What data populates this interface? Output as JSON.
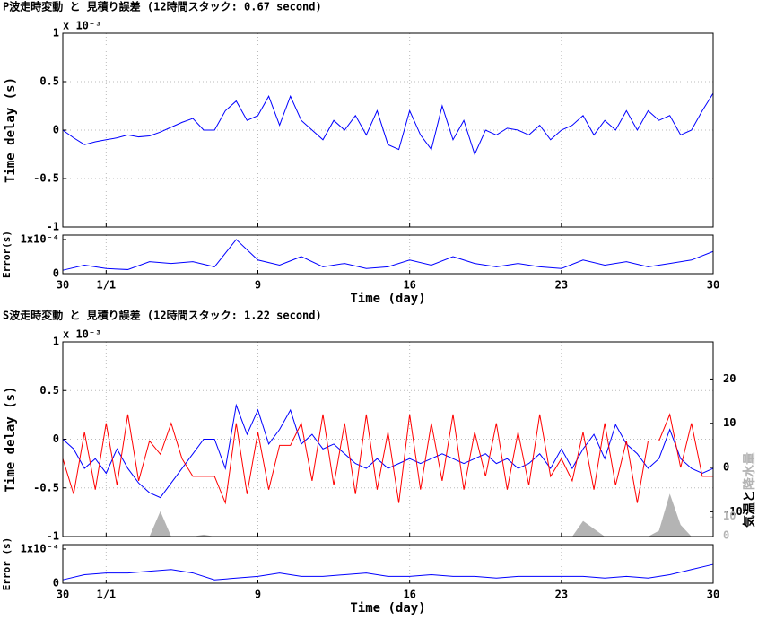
{
  "chart_data": [
    {
      "type": "line",
      "title": "P波走時変動 と 見積り誤差 (12時間スタック: 0.67 second)",
      "ylabel": "Time delay (s)",
      "y_exponent": "x 10⁻³",
      "x": [
        0,
        0.5,
        1,
        1.5,
        2,
        2.5,
        3,
        3.5,
        4,
        4.5,
        5,
        5.5,
        6,
        6.5,
        7,
        7.5,
        8,
        8.5,
        9,
        9.5,
        10,
        10.5,
        11,
        11.5,
        12,
        12.5,
        13,
        13.5,
        14,
        14.5,
        15,
        15.5,
        16,
        16.5,
        17,
        17.5,
        18,
        18.5,
        19,
        19.5,
        20,
        20.5,
        21,
        21.5,
        22,
        22.5,
        23,
        23.5,
        24,
        24.5,
        25,
        25.5,
        26,
        26.5,
        27,
        27.5,
        28,
        28.5,
        29,
        29.5,
        30
      ],
      "series": [
        {
          "color": "#0000ff",
          "values": [
            0,
            -0.08,
            -0.15,
            -0.12,
            -0.1,
            -0.08,
            -0.05,
            -0.07,
            -0.06,
            -0.02,
            0.03,
            0.08,
            0.12,
            0,
            0,
            0.2,
            0.3,
            0.1,
            0.15,
            0.35,
            0.05,
            0.35,
            0.1,
            0.0,
            -0.1,
            0.1,
            0.0,
            0.15,
            -0.05,
            0.2,
            -0.15,
            -0.2,
            0.2,
            -0.05,
            -0.2,
            0.25,
            -0.1,
            0.1,
            -0.25,
            0.0,
            -0.05,
            0.02,
            0.0,
            -0.05,
            0.05,
            -0.1,
            0.0,
            0.05,
            0.15,
            -0.05,
            0.1,
            0.0,
            0.2,
            0.0,
            0.2,
            0.1,
            0.15,
            -0.05,
            0.0,
            0.2,
            0.38
          ]
        }
      ],
      "xlim": [
        0,
        30
      ],
      "ylim": [
        -1,
        1
      ],
      "yticks": [
        1,
        0.5,
        0,
        -0.5,
        -1
      ],
      "grid": true
    },
    {
      "type": "line",
      "ylabel": "Error(s)",
      "xlabel": "Time (day)",
      "x": [
        0,
        1,
        2,
        3,
        4,
        5,
        6,
        7,
        8,
        9,
        10,
        11,
        12,
        13,
        14,
        15,
        16,
        17,
        18,
        19,
        20,
        21,
        22,
        23,
        24,
        25,
        26,
        27,
        28,
        29,
        30
      ],
      "series": [
        {
          "color": "#0000ff",
          "values": [
            1e-05,
            2.5e-05,
            1.5e-05,
            1.2e-05,
            3.5e-05,
            3e-05,
            3.5e-05,
            2e-05,
            0.0001,
            4e-05,
            2.5e-05,
            5e-05,
            2e-05,
            3e-05,
            1.5e-05,
            2e-05,
            4e-05,
            2.5e-05,
            5e-05,
            3e-05,
            2e-05,
            3e-05,
            2e-05,
            1.5e-05,
            4e-05,
            2.5e-05,
            3.5e-05,
            2e-05,
            3e-05,
            4e-05,
            6.5e-05
          ]
        }
      ],
      "xlim": [
        0,
        30
      ],
      "ylim": [
        0,
        0.000113
      ],
      "yticks": [
        0,
        {
          "value": 0.0001,
          "label": "1x10⁻⁴"
        }
      ],
      "xticks": [
        {
          "value": 0,
          "label": "30"
        },
        {
          "value": 2,
          "label": "1/1"
        },
        9,
        16,
        23,
        30
      ],
      "grid": true
    },
    {
      "type": "line",
      "title": "S波走時変動 と 見積り誤差 (12時間スタック: 1.22 second)",
      "ylabel": "Time delay (s)",
      "y_exponent": "x 10⁻³",
      "y2label": "気温と",
      "y3label": "降水量",
      "x": [
        0,
        0.5,
        1,
        1.5,
        2,
        2.5,
        3,
        3.5,
        4,
        4.5,
        5,
        5.5,
        6,
        6.5,
        7,
        7.5,
        8,
        8.5,
        9,
        9.5,
        10,
        10.5,
        11,
        11.5,
        12,
        12.5,
        13,
        13.5,
        14,
        14.5,
        15,
        15.5,
        16,
        16.5,
        17,
        17.5,
        18,
        18.5,
        19,
        19.5,
        20,
        20.5,
        21,
        21.5,
        22,
        22.5,
        23,
        23.5,
        24,
        24.5,
        25,
        25.5,
        26,
        26.5,
        27,
        27.5,
        28,
        28.5,
        29,
        29.5,
        30
      ],
      "series": [
        {
          "color": "#0000ff",
          "values": [
            0,
            -0.1,
            -0.3,
            -0.2,
            -0.35,
            -0.1,
            -0.3,
            -0.45,
            -0.55,
            -0.6,
            -0.45,
            -0.3,
            -0.15,
            0,
            0,
            -0.3,
            0.35,
            0.05,
            0.3,
            -0.05,
            0.1,
            0.3,
            -0.05,
            0.05,
            -0.1,
            -0.05,
            -0.15,
            -0.25,
            -0.3,
            -0.2,
            -0.3,
            -0.25,
            -0.2,
            -0.25,
            -0.2,
            -0.15,
            -0.2,
            -0.25,
            -0.2,
            -0.15,
            -0.25,
            -0.2,
            -0.3,
            -0.25,
            -0.15,
            -0.3,
            -0.1,
            -0.3,
            -0.1,
            0.05,
            -0.2,
            0.15,
            -0.05,
            -0.15,
            -0.3,
            -0.2,
            0.1,
            -0.2,
            -0.3,
            -0.35,
            -0.3
          ]
        },
        {
          "color": "#ff0000",
          "axis": "y2",
          "values": [
            2,
            -6,
            8,
            -5,
            10,
            -4,
            12,
            -3,
            6,
            3,
            10,
            2,
            -2,
            -2,
            -2,
            -8,
            10,
            -6,
            8,
            -5,
            5,
            5,
            10,
            -3,
            12,
            -4,
            10,
            -6,
            12,
            -5,
            8,
            -8,
            12,
            -5,
            10,
            -3,
            12,
            -5,
            8,
            -2,
            10,
            -5,
            8,
            -4,
            12,
            -2,
            2,
            -3,
            8,
            -5,
            10,
            -4,
            6,
            -8,
            6,
            6,
            12,
            0,
            10,
            -2,
            -2
          ]
        },
        {
          "color": "#b4b4b4",
          "axis": "y3",
          "type": "area",
          "values": [
            0,
            0,
            0,
            0,
            0,
            0,
            0,
            0,
            0,
            13,
            0,
            0,
            0,
            1,
            0,
            0,
            0,
            0,
            0,
            0,
            0,
            0,
            0,
            0,
            0,
            0,
            0,
            0,
            0,
            0,
            0,
            0,
            0,
            0,
            0,
            0,
            0,
            0,
            0,
            0,
            0,
            0,
            0,
            0,
            0,
            0,
            0,
            0,
            8,
            4,
            0,
            0,
            0,
            0,
            0,
            3,
            22,
            6,
            0,
            0,
            0
          ]
        }
      ],
      "xlim": [
        0,
        30
      ],
      "ylim": [
        -1,
        1
      ],
      "yticks": [
        1,
        0.5,
        0,
        -0.5,
        -1
      ],
      "y2lim": [
        -15.6,
        28.4
      ],
      "y2ticks": [
        20,
        10,
        0,
        -10
      ],
      "y3lim": [
        0,
        100
      ],
      "y3ticks": [
        10,
        0
      ],
      "grid": true
    },
    {
      "type": "line",
      "ylabel": "Error (s)",
      "xlabel": "Time (day)",
      "x": [
        0,
        1,
        2,
        3,
        4,
        5,
        6,
        7,
        8,
        9,
        10,
        11,
        12,
        13,
        14,
        15,
        16,
        17,
        18,
        19,
        20,
        21,
        22,
        23,
        24,
        25,
        26,
        27,
        28,
        29,
        30
      ],
      "series": [
        {
          "color": "#0000ff",
          "values": [
            1e-05,
            2.5e-05,
            3e-05,
            3e-05,
            3.5e-05,
            4e-05,
            3e-05,
            1e-05,
            1.5e-05,
            2e-05,
            3e-05,
            2e-05,
            2e-05,
            2.5e-05,
            3e-05,
            2e-05,
            2e-05,
            2.5e-05,
            2e-05,
            2e-05,
            1.5e-05,
            2e-05,
            2e-05,
            2e-05,
            2e-05,
            1.5e-05,
            2e-05,
            1.5e-05,
            2.5e-05,
            4e-05,
            5.5e-05
          ]
        }
      ],
      "xlim": [
        0,
        30
      ],
      "ylim": [
        0,
        0.000113
      ],
      "yticks": [
        0,
        {
          "value": 0.0001,
          "label": "1x10⁻⁴"
        }
      ],
      "xticks": [
        {
          "value": 0,
          "label": "30"
        },
        {
          "value": 2,
          "label": "1/1"
        },
        9,
        16,
        23,
        30
      ],
      "grid": true
    }
  ]
}
